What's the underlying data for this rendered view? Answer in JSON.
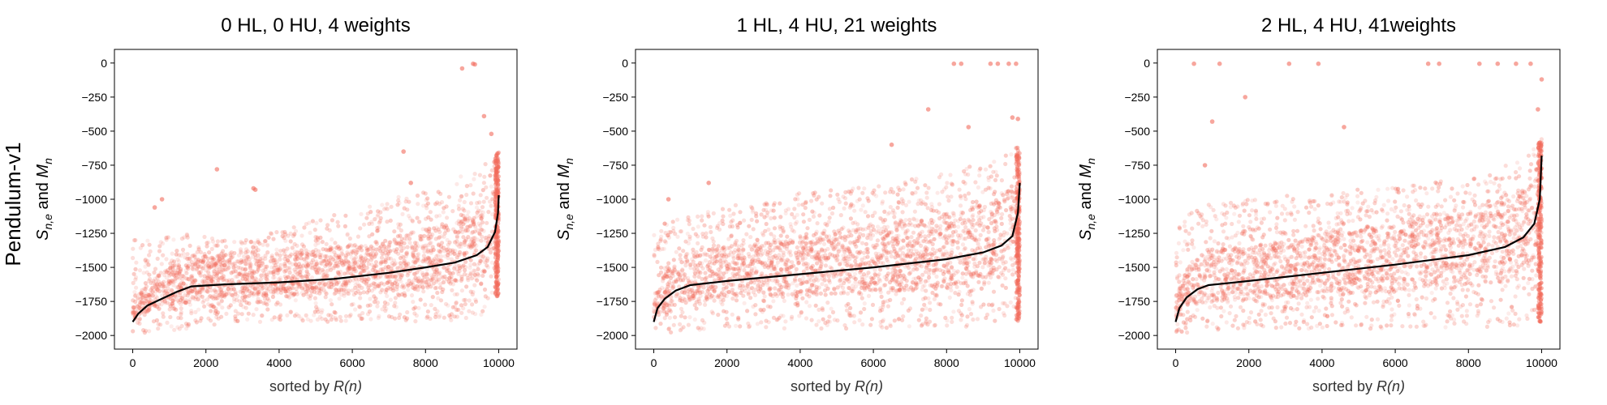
{
  "figure": {
    "row_label": "Pendulum-v1"
  },
  "chart_data": [
    {
      "type": "scatter",
      "title": "0 HL, 0 HU, 4 weights",
      "xlabel_prefix": "sorted by ",
      "xlabel_var": "R(n)",
      "ylabel": "S_{n,e} and M_n",
      "xlim": [
        -500,
        10500
      ],
      "ylim": [
        -2100,
        100
      ],
      "xticks": [
        0,
        2000,
        4000,
        6000,
        8000,
        10000
      ],
      "yticks": [
        0,
        -250,
        -500,
        -750,
        -1000,
        -1250,
        -1500,
        -1750,
        -2000
      ],
      "grid": false,
      "scatter_color": "#f26b5b",
      "line_color": "#000000",
      "mean_line": {
        "name": "M_n",
        "x": [
          0,
          150,
          400,
          800,
          1200,
          1600,
          2500,
          4000,
          5500,
          7000,
          8000,
          8800,
          9400,
          9700,
          9900,
          9980,
          10000
        ],
        "y": [
          -1900,
          -1840,
          -1780,
          -1730,
          -1680,
          -1640,
          -1625,
          -1610,
          -1585,
          -1540,
          -1500,
          -1465,
          -1410,
          -1350,
          -1240,
          -1100,
          -970
        ]
      },
      "spread": {
        "x": [
          0,
          500,
          1600,
          3000,
          5000,
          7000,
          8500,
          9500,
          10000
        ],
        "upper": [
          -1300,
          -1300,
          -1250,
          -1300,
          -1150,
          -1000,
          -900,
          -750,
          -650
        ],
        "lower": [
          -1980,
          -1980,
          -1950,
          -1900,
          -1900,
          -1900,
          -1900,
          -1870,
          -1700
        ]
      },
      "outliers": [
        {
          "x": 9000,
          "y": -40
        },
        {
          "x": 9300,
          "y": -5
        },
        {
          "x": 9350,
          "y": -10
        },
        {
          "x": 3300,
          "y": -920
        },
        {
          "x": 3350,
          "y": -930
        },
        {
          "x": 2300,
          "y": -780
        },
        {
          "x": 800,
          "y": -1000
        },
        {
          "x": 9600,
          "y": -390
        },
        {
          "x": 9800,
          "y": -520
        },
        {
          "x": 7400,
          "y": -650
        },
        {
          "x": 7600,
          "y": -880
        },
        {
          "x": 600,
          "y": -1060
        }
      ]
    },
    {
      "type": "scatter",
      "title": "1 HL, 4 HU, 21 weights",
      "xlabel_prefix": "sorted by ",
      "xlabel_var": "R(n)",
      "ylabel": "S_{n,e} and M_n",
      "xlim": [
        -500,
        10500
      ],
      "ylim": [
        -2100,
        100
      ],
      "xticks": [
        0,
        2000,
        4000,
        6000,
        8000,
        10000
      ],
      "yticks": [
        0,
        -250,
        -500,
        -750,
        -1000,
        -1250,
        -1500,
        -1750,
        -2000
      ],
      "grid": false,
      "scatter_color": "#f26b5b",
      "line_color": "#000000",
      "mean_line": {
        "name": "M_n",
        "x": [
          0,
          100,
          300,
          600,
          1000,
          2000,
          4000,
          6000,
          8000,
          9000,
          9500,
          9800,
          9950,
          10000
        ],
        "y": [
          -1900,
          -1800,
          -1730,
          -1670,
          -1630,
          -1600,
          -1550,
          -1500,
          -1440,
          -1390,
          -1340,
          -1270,
          -1100,
          -880
        ]
      },
      "spread": {
        "x": [
          0,
          500,
          2000,
          4000,
          6000,
          8000,
          9500,
          10000
        ],
        "upper": [
          -1250,
          -1100,
          -1050,
          -950,
          -900,
          -800,
          -700,
          -600
        ],
        "lower": [
          -1980,
          -1980,
          -1950,
          -1950,
          -1950,
          -1940,
          -1930,
          -1900
        ]
      },
      "outliers": [
        {
          "x": 8200,
          "y": -5
        },
        {
          "x": 8400,
          "y": -5
        },
        {
          "x": 9200,
          "y": -5
        },
        {
          "x": 9400,
          "y": -5
        },
        {
          "x": 9700,
          "y": -5
        },
        {
          "x": 9900,
          "y": -5
        },
        {
          "x": 7500,
          "y": -340
        },
        {
          "x": 9800,
          "y": -400
        },
        {
          "x": 9950,
          "y": -410
        },
        {
          "x": 6500,
          "y": -600
        },
        {
          "x": 1500,
          "y": -880
        },
        {
          "x": 400,
          "y": -1000
        },
        {
          "x": 8600,
          "y": -470
        }
      ]
    },
    {
      "type": "scatter",
      "title": "2 HL, 4 HU, 41weights",
      "xlabel_prefix": "sorted by ",
      "xlabel_var": "R(n)",
      "ylabel": "S_{n,e} and M_n",
      "xlim": [
        -500,
        10500
      ],
      "ylim": [
        -2100,
        100
      ],
      "xticks": [
        0,
        2000,
        4000,
        6000,
        8000,
        10000
      ],
      "yticks": [
        0,
        -250,
        -500,
        -750,
        -1000,
        -1250,
        -1500,
        -1750,
        -2000
      ],
      "grid": false,
      "scatter_color": "#f26b5b",
      "line_color": "#000000",
      "mean_line": {
        "name": "M_n",
        "x": [
          0,
          100,
          300,
          600,
          900,
          2000,
          4000,
          6000,
          8000,
          9000,
          9500,
          9800,
          9950,
          10000
        ],
        "y": [
          -1900,
          -1800,
          -1720,
          -1660,
          -1630,
          -1600,
          -1540,
          -1480,
          -1410,
          -1350,
          -1280,
          -1180,
          -1000,
          -680
        ]
      },
      "spread": {
        "x": [
          0,
          500,
          2000,
          4000,
          6000,
          8000,
          9500,
          10000
        ],
        "upper": [
          -1200,
          -1050,
          -1000,
          -950,
          -900,
          -850,
          -700,
          -550
        ],
        "lower": [
          -1980,
          -1980,
          -1950,
          -1950,
          -1950,
          -1940,
          -1930,
          -1900
        ]
      },
      "outliers": [
        {
          "x": 500,
          "y": -5
        },
        {
          "x": 1200,
          "y": -5
        },
        {
          "x": 3100,
          "y": -5
        },
        {
          "x": 3900,
          "y": -5
        },
        {
          "x": 6900,
          "y": -5
        },
        {
          "x": 7200,
          "y": -5
        },
        {
          "x": 8300,
          "y": -5
        },
        {
          "x": 8800,
          "y": -5
        },
        {
          "x": 9300,
          "y": -5
        },
        {
          "x": 9700,
          "y": -5
        },
        {
          "x": 10000,
          "y": -120
        },
        {
          "x": 1900,
          "y": -250
        },
        {
          "x": 1000,
          "y": -430
        },
        {
          "x": 4600,
          "y": -470
        },
        {
          "x": 9900,
          "y": -340
        },
        {
          "x": 800,
          "y": -750
        }
      ]
    }
  ]
}
